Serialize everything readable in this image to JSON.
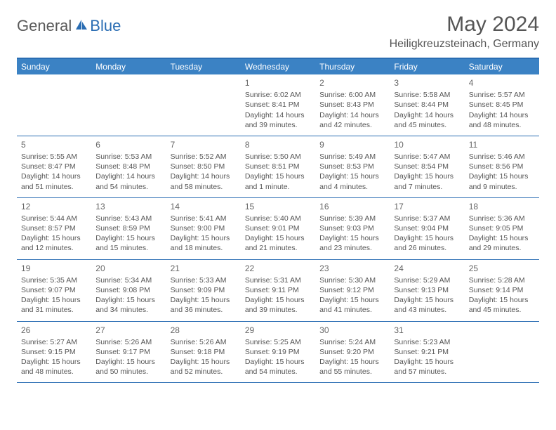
{
  "brand": {
    "part1": "General",
    "part2": "Blue"
  },
  "title": "May 2024",
  "location": "Heiligkreuzsteinach, Germany",
  "colors": {
    "header_bg": "#3b82c4",
    "border": "#2a6db3",
    "text": "#555555"
  },
  "weekdays": [
    "Sunday",
    "Monday",
    "Tuesday",
    "Wednesday",
    "Thursday",
    "Friday",
    "Saturday"
  ],
  "weeks": [
    [
      {
        "day": "",
        "sunrise": "",
        "sunset": "",
        "daylight": ""
      },
      {
        "day": "",
        "sunrise": "",
        "sunset": "",
        "daylight": ""
      },
      {
        "day": "",
        "sunrise": "",
        "sunset": "",
        "daylight": ""
      },
      {
        "day": "1",
        "sunrise": "Sunrise: 6:02 AM",
        "sunset": "Sunset: 8:41 PM",
        "daylight": "Daylight: 14 hours and 39 minutes."
      },
      {
        "day": "2",
        "sunrise": "Sunrise: 6:00 AM",
        "sunset": "Sunset: 8:43 PM",
        "daylight": "Daylight: 14 hours and 42 minutes."
      },
      {
        "day": "3",
        "sunrise": "Sunrise: 5:58 AM",
        "sunset": "Sunset: 8:44 PM",
        "daylight": "Daylight: 14 hours and 45 minutes."
      },
      {
        "day": "4",
        "sunrise": "Sunrise: 5:57 AM",
        "sunset": "Sunset: 8:45 PM",
        "daylight": "Daylight: 14 hours and 48 minutes."
      }
    ],
    [
      {
        "day": "5",
        "sunrise": "Sunrise: 5:55 AM",
        "sunset": "Sunset: 8:47 PM",
        "daylight": "Daylight: 14 hours and 51 minutes."
      },
      {
        "day": "6",
        "sunrise": "Sunrise: 5:53 AM",
        "sunset": "Sunset: 8:48 PM",
        "daylight": "Daylight: 14 hours and 54 minutes."
      },
      {
        "day": "7",
        "sunrise": "Sunrise: 5:52 AM",
        "sunset": "Sunset: 8:50 PM",
        "daylight": "Daylight: 14 hours and 58 minutes."
      },
      {
        "day": "8",
        "sunrise": "Sunrise: 5:50 AM",
        "sunset": "Sunset: 8:51 PM",
        "daylight": "Daylight: 15 hours and 1 minute."
      },
      {
        "day": "9",
        "sunrise": "Sunrise: 5:49 AM",
        "sunset": "Sunset: 8:53 PM",
        "daylight": "Daylight: 15 hours and 4 minutes."
      },
      {
        "day": "10",
        "sunrise": "Sunrise: 5:47 AM",
        "sunset": "Sunset: 8:54 PM",
        "daylight": "Daylight: 15 hours and 7 minutes."
      },
      {
        "day": "11",
        "sunrise": "Sunrise: 5:46 AM",
        "sunset": "Sunset: 8:56 PM",
        "daylight": "Daylight: 15 hours and 9 minutes."
      }
    ],
    [
      {
        "day": "12",
        "sunrise": "Sunrise: 5:44 AM",
        "sunset": "Sunset: 8:57 PM",
        "daylight": "Daylight: 15 hours and 12 minutes."
      },
      {
        "day": "13",
        "sunrise": "Sunrise: 5:43 AM",
        "sunset": "Sunset: 8:59 PM",
        "daylight": "Daylight: 15 hours and 15 minutes."
      },
      {
        "day": "14",
        "sunrise": "Sunrise: 5:41 AM",
        "sunset": "Sunset: 9:00 PM",
        "daylight": "Daylight: 15 hours and 18 minutes."
      },
      {
        "day": "15",
        "sunrise": "Sunrise: 5:40 AM",
        "sunset": "Sunset: 9:01 PM",
        "daylight": "Daylight: 15 hours and 21 minutes."
      },
      {
        "day": "16",
        "sunrise": "Sunrise: 5:39 AM",
        "sunset": "Sunset: 9:03 PM",
        "daylight": "Daylight: 15 hours and 23 minutes."
      },
      {
        "day": "17",
        "sunrise": "Sunrise: 5:37 AM",
        "sunset": "Sunset: 9:04 PM",
        "daylight": "Daylight: 15 hours and 26 minutes."
      },
      {
        "day": "18",
        "sunrise": "Sunrise: 5:36 AM",
        "sunset": "Sunset: 9:05 PM",
        "daylight": "Daylight: 15 hours and 29 minutes."
      }
    ],
    [
      {
        "day": "19",
        "sunrise": "Sunrise: 5:35 AM",
        "sunset": "Sunset: 9:07 PM",
        "daylight": "Daylight: 15 hours and 31 minutes."
      },
      {
        "day": "20",
        "sunrise": "Sunrise: 5:34 AM",
        "sunset": "Sunset: 9:08 PM",
        "daylight": "Daylight: 15 hours and 34 minutes."
      },
      {
        "day": "21",
        "sunrise": "Sunrise: 5:33 AM",
        "sunset": "Sunset: 9:09 PM",
        "daylight": "Daylight: 15 hours and 36 minutes."
      },
      {
        "day": "22",
        "sunrise": "Sunrise: 5:31 AM",
        "sunset": "Sunset: 9:11 PM",
        "daylight": "Daylight: 15 hours and 39 minutes."
      },
      {
        "day": "23",
        "sunrise": "Sunrise: 5:30 AM",
        "sunset": "Sunset: 9:12 PM",
        "daylight": "Daylight: 15 hours and 41 minutes."
      },
      {
        "day": "24",
        "sunrise": "Sunrise: 5:29 AM",
        "sunset": "Sunset: 9:13 PM",
        "daylight": "Daylight: 15 hours and 43 minutes."
      },
      {
        "day": "25",
        "sunrise": "Sunrise: 5:28 AM",
        "sunset": "Sunset: 9:14 PM",
        "daylight": "Daylight: 15 hours and 45 minutes."
      }
    ],
    [
      {
        "day": "26",
        "sunrise": "Sunrise: 5:27 AM",
        "sunset": "Sunset: 9:15 PM",
        "daylight": "Daylight: 15 hours and 48 minutes."
      },
      {
        "day": "27",
        "sunrise": "Sunrise: 5:26 AM",
        "sunset": "Sunset: 9:17 PM",
        "daylight": "Daylight: 15 hours and 50 minutes."
      },
      {
        "day": "28",
        "sunrise": "Sunrise: 5:26 AM",
        "sunset": "Sunset: 9:18 PM",
        "daylight": "Daylight: 15 hours and 52 minutes."
      },
      {
        "day": "29",
        "sunrise": "Sunrise: 5:25 AM",
        "sunset": "Sunset: 9:19 PM",
        "daylight": "Daylight: 15 hours and 54 minutes."
      },
      {
        "day": "30",
        "sunrise": "Sunrise: 5:24 AM",
        "sunset": "Sunset: 9:20 PM",
        "daylight": "Daylight: 15 hours and 55 minutes."
      },
      {
        "day": "31",
        "sunrise": "Sunrise: 5:23 AM",
        "sunset": "Sunset: 9:21 PM",
        "daylight": "Daylight: 15 hours and 57 minutes."
      },
      {
        "day": "",
        "sunrise": "",
        "sunset": "",
        "daylight": ""
      }
    ]
  ]
}
